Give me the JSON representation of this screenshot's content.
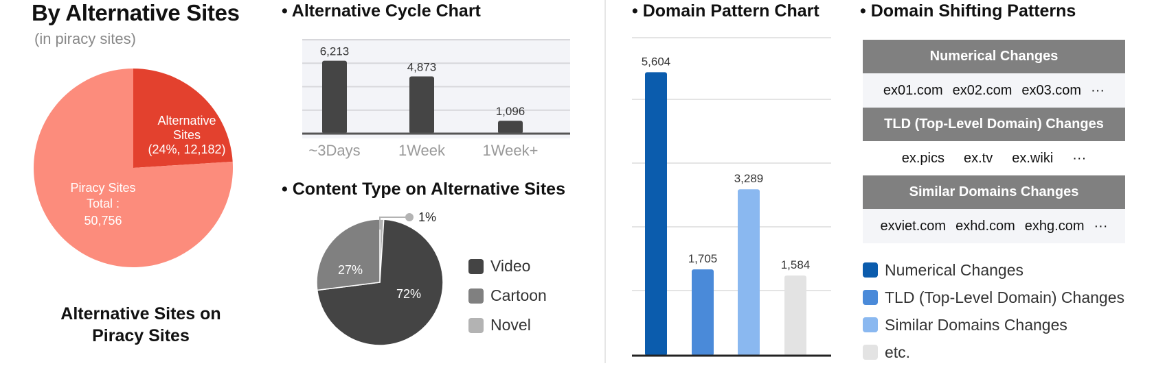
{
  "header": {
    "title": "By Alternative Sites",
    "subtitle": "(in piracy sites)"
  },
  "piracy_pie": {
    "caption_line1": "Alternative Sites on",
    "caption_line2": "Piracy Sites",
    "alt_label_1": "Alternative",
    "alt_label_2": "Sites",
    "alt_label_3": "(24%, 12,182)",
    "piracy_label_1": "Piracy Sites",
    "piracy_label_2": "Total :",
    "piracy_label_3": "50,756",
    "colors": {
      "alternative": "#e3412e",
      "piracy": "#fc8c7c"
    }
  },
  "cycle_section": {
    "title": "• Alternative Cycle Chart"
  },
  "content_section": {
    "title": "• Content Type on Alternative Sites"
  },
  "domain_section": {
    "title": "• Domain Pattern Chart"
  },
  "shifting_section": {
    "title": "• Domain Shifting Patterns",
    "groups": [
      {
        "header": "Numerical Changes",
        "examples": [
          "ex01.com",
          "ex02.com",
          "ex03.com",
          "···"
        ]
      },
      {
        "header": "TLD (Top-Level Domain) Changes",
        "examples": [
          "ex.pics",
          "ex.tv",
          "ex.wiki",
          "···"
        ]
      },
      {
        "header": "Similar Domains Changes",
        "examples": [
          "exviet.com",
          "exhd.com",
          "exhg.com",
          "···"
        ]
      }
    ],
    "legend": [
      {
        "label": "Numerical Changes",
        "color": "#0b5cad"
      },
      {
        "label": "TLD (Top-Level Domain) Changes",
        "color": "#4a8ad9"
      },
      {
        "label": "Similar Domains Changes",
        "color": "#8ab8f0"
      },
      {
        "label": "etc.",
        "color": "#e3e3e3"
      }
    ]
  },
  "chart_data": [
    {
      "type": "pie",
      "labels": [
        "Alternative Sites",
        "Piracy Sites"
      ],
      "values": [
        12182,
        38574
      ],
      "percent": [
        24,
        76
      ],
      "total": 50756
    },
    {
      "type": "bar",
      "categories": [
        "~3Days",
        "1Week",
        "1Week+"
      ],
      "values": [
        6213,
        4873,
        1096
      ],
      "value_labels": [
        "6,213",
        "4,873",
        "1,096"
      ],
      "ylim": [
        0,
        8000
      ],
      "grid": true,
      "color": "#454545"
    },
    {
      "type": "pie",
      "labels": [
        "Video",
        "Cartoon",
        "Novel"
      ],
      "values": [
        72,
        27,
        1
      ],
      "value_labels": [
        "72%",
        "27%",
        "1%"
      ],
      "colors": [
        "#444444",
        "#808080",
        "#b3b3b3"
      ],
      "legend": "right"
    },
    {
      "type": "bar",
      "categories": [
        "Numerical Changes",
        "TLD (Top-Level Domain) Changes",
        "Similar Domains Changes",
        "etc."
      ],
      "values": [
        5604,
        1705,
        3289,
        1584
      ],
      "value_labels": [
        "5,604",
        "1,705",
        "3,289",
        "1,584"
      ],
      "colors": [
        "#0b5cad",
        "#4a8ad9",
        "#8ab8f0",
        "#e3e3e3"
      ],
      "ylim": [
        0,
        6300
      ],
      "grid": true
    }
  ]
}
